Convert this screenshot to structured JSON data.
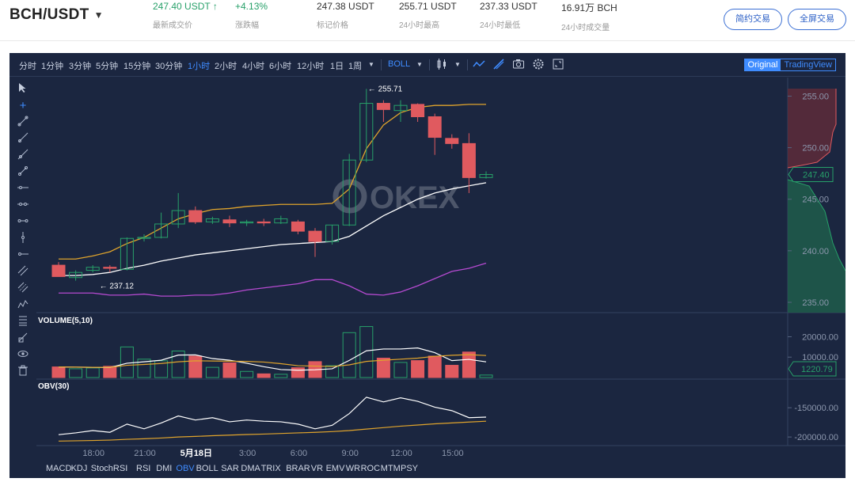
{
  "header": {
    "pair": "BCH/USDT",
    "stats": [
      {
        "value": "247.40 USDT ↑",
        "label": "最新成交价",
        "up": true
      },
      {
        "value": "+4.13%",
        "label": "涨跌幅",
        "up": true
      },
      {
        "value": "247.38 USDT",
        "label": "标记价格",
        "up": false
      },
      {
        "value": "255.71 USDT",
        "label": "24小时最高",
        "up": false
      },
      {
        "value": "237.33 USDT",
        "label": "24小时最低",
        "up": false
      },
      {
        "value": "16.91万 BCH",
        "label": "24小时成交量",
        "up": false
      }
    ],
    "buttons": {
      "simple": "简约交易",
      "full": "全屏交易"
    }
  },
  "toolbar": {
    "timeframes": [
      "分时",
      "1分钟",
      "3分钟",
      "5分钟",
      "15分钟",
      "30分钟",
      "1小时",
      "2小时",
      "4小时",
      "6小时",
      "12小时",
      "1日",
      "1周"
    ],
    "active_timeframe": "1小时",
    "indicator_select": "BOLL",
    "view_original": "Original",
    "view_tradingview": "TradingView"
  },
  "panels": {
    "volume_label": "VOLUME(5,10)",
    "obv_label": "OBV(30)",
    "watermark": "OKEX"
  },
  "indicators": [
    "MACD",
    "KDJ",
    "StochRSI",
    "RSI",
    "DMI",
    "OBV",
    "BOLL",
    "SAR",
    "DMA",
    "TRIX",
    "BRAR",
    "VR",
    "EMV",
    "WR",
    "ROC",
    "MTM",
    "PSY"
  ],
  "active_indicator": "OBV",
  "colors": {
    "up": "#27a069",
    "down": "#e05a5f",
    "bg": "#1b2640",
    "accent": "#3f8cff",
    "boll_upper": "#e0a42c",
    "boll_mid": "#ffffff",
    "boll_lower": "#b54ad0"
  },
  "chart_data": {
    "type": "candlestick",
    "price_axis": {
      "ticks": [
        "255.00",
        "250.00",
        "245.00",
        "240.00",
        "235.00"
      ],
      "ylim": [
        234.0,
        256.8
      ]
    },
    "current_price_label": "247.40",
    "high_annotation": "← 255.71",
    "low_annotation": "← 237.12",
    "x_ticks": [
      {
        "label": "18:00",
        "index": 2
      },
      {
        "label": "21:00",
        "index": 5
      },
      {
        "label": "5月18日",
        "index": 8
      },
      {
        "label": "3:00",
        "index": 11
      },
      {
        "label": "6:00",
        "index": 14
      },
      {
        "label": "9:00",
        "index": 17
      },
      {
        "label": "12:00",
        "index": 20
      },
      {
        "label": "15:00",
        "index": 23
      }
    ],
    "candles": [
      {
        "o": 238.6,
        "h": 238.9,
        "l": 237.5,
        "c": 237.5
      },
      {
        "o": 237.4,
        "h": 238.1,
        "l": 237.1,
        "c": 237.9
      },
      {
        "o": 238.1,
        "h": 238.6,
        "l": 237.9,
        "c": 238.4
      },
      {
        "o": 238.4,
        "h": 238.6,
        "l": 237.9,
        "c": 238.3
      },
      {
        "o": 238.2,
        "h": 241.3,
        "l": 238.1,
        "c": 241.2
      },
      {
        "o": 241.2,
        "h": 241.6,
        "l": 240.9,
        "c": 241.3
      },
      {
        "o": 241.3,
        "h": 243.7,
        "l": 241.2,
        "c": 242.6
      },
      {
        "o": 242.6,
        "h": 245.6,
        "l": 242.2,
        "c": 243.9
      },
      {
        "o": 243.9,
        "h": 244.3,
        "l": 242.6,
        "c": 242.8
      },
      {
        "o": 242.8,
        "h": 243.3,
        "l": 242.6,
        "c": 243.1
      },
      {
        "o": 243.0,
        "h": 243.4,
        "l": 242.3,
        "c": 242.7
      },
      {
        "o": 242.7,
        "h": 243.0,
        "l": 242.4,
        "c": 242.8
      },
      {
        "o": 242.8,
        "h": 243.1,
        "l": 242.4,
        "c": 242.7
      },
      {
        "o": 242.7,
        "h": 243.4,
        "l": 242.6,
        "c": 243.1
      },
      {
        "o": 242.8,
        "h": 243.0,
        "l": 241.6,
        "c": 241.9
      },
      {
        "o": 241.9,
        "h": 242.2,
        "l": 239.4,
        "c": 240.9
      },
      {
        "o": 240.9,
        "h": 242.5,
        "l": 240.6,
        "c": 242.5
      },
      {
        "o": 242.5,
        "h": 249.4,
        "l": 242.4,
        "c": 248.8
      },
      {
        "o": 248.8,
        "h": 255.7,
        "l": 248.6,
        "c": 254.3
      },
      {
        "o": 254.3,
        "h": 254.6,
        "l": 252.5,
        "c": 253.7
      },
      {
        "o": 253.6,
        "h": 254.6,
        "l": 252.5,
        "c": 254.1
      },
      {
        "o": 254.2,
        "h": 254.3,
        "l": 252.5,
        "c": 253.0
      },
      {
        "o": 253.0,
        "h": 253.3,
        "l": 249.3,
        "c": 251.0
      },
      {
        "o": 250.9,
        "h": 251.3,
        "l": 249.9,
        "c": 250.4
      },
      {
        "o": 250.4,
        "h": 251.4,
        "l": 245.6,
        "c": 247.1
      },
      {
        "o": 247.1,
        "h": 247.7,
        "l": 247.0,
        "c": 247.4
      }
    ],
    "boll_upper": [
      239.2,
      239.2,
      239.5,
      239.9,
      240.7,
      241.3,
      242.2,
      243.1,
      243.6,
      244.0,
      244.1,
      244.3,
      244.4,
      244.5,
      244.5,
      244.5,
      244.6,
      246.0,
      249.9,
      252.2,
      253.4,
      253.9,
      254.1,
      254.1,
      254.2,
      254.2
    ],
    "boll_mid": [
      237.6,
      237.6,
      237.7,
      237.9,
      238.3,
      238.6,
      239.0,
      239.3,
      239.6,
      239.8,
      240.0,
      240.2,
      240.4,
      240.6,
      240.7,
      240.8,
      240.9,
      241.4,
      242.4,
      243.4,
      244.2,
      245.0,
      245.6,
      246.0,
      246.3,
      246.6
    ],
    "boll_lower": [
      235.9,
      235.9,
      235.9,
      235.7,
      235.7,
      235.8,
      235.6,
      235.6,
      235.7,
      235.7,
      235.9,
      236.2,
      236.4,
      236.6,
      236.8,
      237.2,
      237.2,
      236.6,
      235.8,
      235.7,
      236.0,
      236.6,
      237.3,
      238.0,
      238.3,
      238.8
    ],
    "volume": {
      "axis_ticks": [
        "20000.00",
        "10000.00"
      ],
      "current_label": "1220.79",
      "ylim": [
        0,
        26000
      ],
      "values": [
        5200,
        4300,
        4700,
        5500,
        15000,
        9000,
        8200,
        13000,
        10500,
        5000,
        7200,
        3000,
        1800,
        1600,
        4800,
        7800,
        5800,
        22000,
        25000,
        9500,
        7400,
        8300,
        10500,
        6000,
        12500,
        1220
      ],
      "ma5": [
        5200,
        5100,
        5000,
        4900,
        7000,
        7700,
        8500,
        11000,
        11100,
        9300,
        8500,
        7000,
        5300,
        3900,
        3600,
        3800,
        4300,
        8400,
        13100,
        14000,
        14000,
        14500,
        12200,
        8300,
        8900,
        7700
      ],
      "ma10": [
        5200,
        5100,
        5000,
        5000,
        6000,
        6400,
        6900,
        7700,
        8200,
        8100,
        8000,
        7900,
        7600,
        6800,
        5800,
        5600,
        5400,
        6200,
        7900,
        8500,
        9000,
        9500,
        10400,
        10900,
        11200,
        10800
      ]
    },
    "obv": {
      "axis_ticks": [
        "-150000.00",
        "-200000.00"
      ],
      "ylim": [
        -212000,
        -120000
      ],
      "values": [
        -196000,
        -193000,
        -189000,
        -192000,
        -178000,
        -186000,
        -176000,
        -164000,
        -171000,
        -167000,
        -174000,
        -171000,
        -173000,
        -174000,
        -178000,
        -186000,
        -180000,
        -160000,
        -132000,
        -140000,
        -133000,
        -139000,
        -149000,
        -155000,
        -167000,
        -166000
      ],
      "ma": [
        -207000,
        -206500,
        -206000,
        -205300,
        -204000,
        -203000,
        -201800,
        -200000,
        -199000,
        -197800,
        -196800,
        -195800,
        -195000,
        -194000,
        -193000,
        -192000,
        -190800,
        -189000,
        -186500,
        -184000,
        -181500,
        -179500,
        -177500,
        -176000,
        -174500,
        -173000
      ]
    }
  }
}
